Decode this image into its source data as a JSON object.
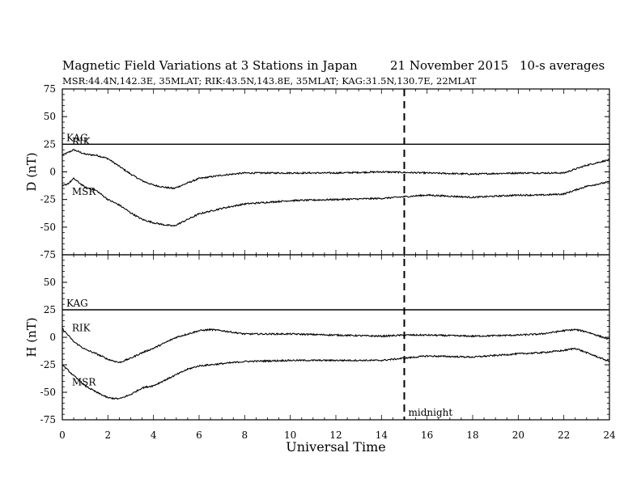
{
  "title": "Magnetic Field Variations at 3 Stations in Japan",
  "date": "21 November 2015",
  "averaging": "10-s averages",
  "stations_line": "MSR:44.4N,142.3E, 35MLAT;  RIK:43.5N,143.8E, 35MLAT;  KAG:31.5N,130.7E, 22MLAT",
  "chart_data": [
    {
      "type": "line",
      "panel": "D",
      "ylabel": "D (nT)",
      "ylim": [
        -75,
        75
      ],
      "yticks": [
        75,
        50,
        25,
        0,
        -25,
        -50,
        -75
      ],
      "xlim": [
        0,
        24
      ],
      "reference_line": {
        "label": "KAG",
        "y": 25
      },
      "series": [
        {
          "name": "RIK",
          "x": [
            0,
            0.3,
            0.5,
            1.0,
            1.5,
            2.0,
            2.5,
            3.0,
            3.5,
            4.0,
            4.5,
            4.9,
            5.5,
            6.0,
            7.0,
            8.0,
            10.0,
            12.0,
            14.0,
            16.0,
            18.0,
            20.0,
            21.0,
            22.0,
            23.0,
            24.0
          ],
          "values": [
            15,
            18,
            20,
            16,
            15,
            12,
            5,
            -2,
            -8,
            -12,
            -14,
            -15,
            -10,
            -6,
            -3,
            -1,
            -1,
            -1,
            0,
            -1,
            -2,
            -1,
            -1,
            -1,
            6,
            11
          ]
        },
        {
          "name": "MSR",
          "x": [
            0,
            0.3,
            0.5,
            1.0,
            1.5,
            2.0,
            2.5,
            3.0,
            3.5,
            4.0,
            4.5,
            4.9,
            5.5,
            6.0,
            7.0,
            8.0,
            10.0,
            12.0,
            14.0,
            16.0,
            18.0,
            20.0,
            21.0,
            22.0,
            23.0,
            24.0
          ],
          "values": [
            -13,
            -10,
            -6,
            -14,
            -17,
            -25,
            -30,
            -37,
            -43,
            -46,
            -48,
            -49,
            -43,
            -38,
            -33,
            -29,
            -26,
            -25,
            -24,
            -21,
            -23,
            -21,
            -21,
            -20,
            -13,
            -9
          ]
        }
      ],
      "grid": false
    },
    {
      "type": "line",
      "panel": "H",
      "ylabel": "H (nT)",
      "ylim": [
        -75,
        75
      ],
      "yticks": [
        75,
        50,
        25,
        0,
        -25,
        -50,
        -75
      ],
      "xlim": [
        0,
        24
      ],
      "xticks": [
        0,
        2,
        4,
        6,
        8,
        10,
        12,
        14,
        16,
        18,
        20,
        22,
        24
      ],
      "xlabel": "Universal Time",
      "reference_line": {
        "label": "KAG",
        "y": 25
      },
      "series": [
        {
          "name": "RIK",
          "x": [
            0,
            0.5,
            1.0,
            1.5,
            2.0,
            2.5,
            3.0,
            3.5,
            4.0,
            4.5,
            5.0,
            5.5,
            6.0,
            6.5,
            7.0,
            8.0,
            10.0,
            12.0,
            14.0,
            15.0,
            16.0,
            18.0,
            20.0,
            21.0,
            22.0,
            22.5,
            23.0,
            24.0
          ],
          "values": [
            8,
            -4,
            -11,
            -15,
            -20,
            -23,
            -19,
            -14,
            -10,
            -5,
            0,
            3,
            6,
            7,
            6,
            3,
            3,
            2,
            1,
            2,
            2,
            1,
            2,
            3,
            6,
            7,
            5,
            -2
          ]
        },
        {
          "name": "MSR",
          "x": [
            0,
            0.5,
            1.0,
            1.5,
            2.0,
            2.5,
            3.0,
            3.5,
            4.0,
            4.5,
            5.0,
            5.5,
            6.0,
            7.0,
            8.0,
            10.0,
            12.0,
            14.0,
            15.0,
            16.0,
            18.0,
            20.0,
            21.0,
            22.0,
            22.5,
            23.0,
            24.0
          ],
          "values": [
            -25,
            -35,
            -44,
            -50,
            -55,
            -56,
            -52,
            -46,
            -44,
            -39,
            -34,
            -29,
            -26,
            -24,
            -22,
            -21,
            -21,
            -21,
            -19,
            -17,
            -18,
            -15,
            -14,
            -12,
            -10,
            -14,
            -22
          ]
        }
      ],
      "grid": false
    }
  ],
  "marker": {
    "label": "midnight",
    "x": 15
  }
}
